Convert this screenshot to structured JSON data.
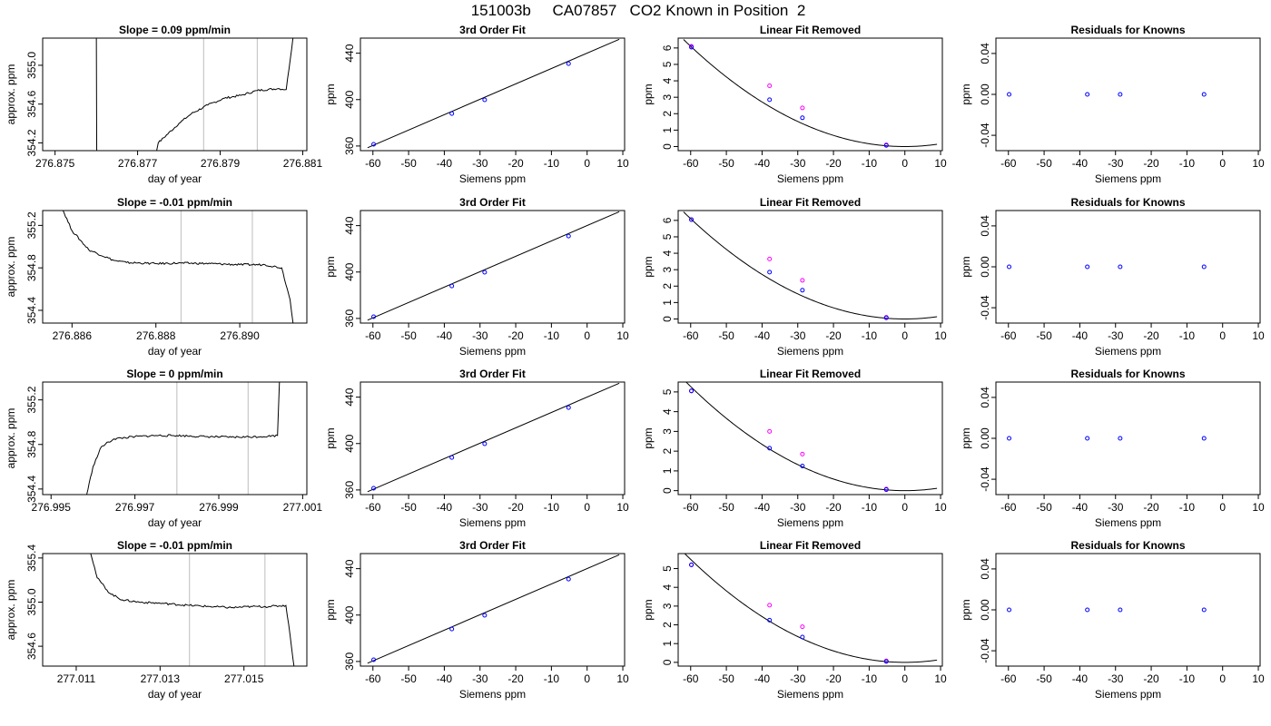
{
  "title": "151003b     CA07857   CO2 Known in Position  2",
  "colors": {
    "frame": "#000000",
    "grid_vline": "#c8c8c8",
    "known": "#0000ff",
    "raw": "#ff00ff",
    "curve": "#000000"
  },
  "chart_data": [
    {
      "row": 0,
      "type": "line",
      "title": "Slope =  0.09  ppm/min",
      "xlabel": "day of year",
      "ylabel": "approx. ppm",
      "xlim": [
        276.8747,
        276.8811
      ],
      "ylim": [
        354.12,
        355.28
      ],
      "xticks": [
        276.875,
        276.877,
        276.879,
        276.881
      ],
      "xtick_labels": [
        "276.875",
        "276.877",
        "276.879",
        "276.881"
      ],
      "yticks": [
        354.2,
        354.6,
        355.0
      ],
      "ytick_labels": [
        "354.2",
        "354.6",
        "355.0"
      ],
      "vlines": [
        276.8786,
        276.8799
      ],
      "x_start": 276.876,
      "x_end": 276.8808,
      "segments": [
        [
          276.876,
          355.4
        ],
        [
          276.87601,
          354.05
        ],
        [
          276.87742,
          354.05
        ],
        [
          276.8775,
          354.2
        ],
        [
          276.878,
          354.4
        ],
        [
          276.8783,
          354.5
        ],
        [
          276.8787,
          354.59
        ],
        [
          276.8791,
          354.66
        ],
        [
          276.8795,
          354.69
        ],
        [
          276.8799,
          354.74
        ],
        [
          276.8804,
          354.76
        ],
        [
          276.8806,
          354.75
        ],
        [
          276.8808,
          355.4
        ]
      ]
    },
    {
      "row": 1,
      "type": "line",
      "title": "Slope =  -0.01  ppm/min",
      "xlabel": "day of year",
      "ylabel": "approx. ppm",
      "xlim": [
        276.8853,
        276.8916
      ],
      "ylim": [
        354.28,
        355.34
      ],
      "xticks": [
        276.886,
        276.888,
        276.89
      ],
      "xtick_labels": [
        "276.886",
        "276.888",
        "276.890"
      ],
      "yticks": [
        354.4,
        354.8,
        355.2
      ],
      "ytick_labels": [
        "354.4",
        "354.8",
        "355.2"
      ],
      "vlines": [
        276.8886,
        276.8903
      ],
      "x_start": 276.8857,
      "x_end": 276.8913,
      "segments": [
        [
          276.88572,
          355.4
        ],
        [
          276.886,
          355.15
        ],
        [
          276.8864,
          354.97
        ],
        [
          276.887,
          354.87
        ],
        [
          276.8873,
          354.85
        ],
        [
          276.888,
          354.84
        ],
        [
          276.8886,
          354.845
        ],
        [
          276.8893,
          354.84
        ],
        [
          276.89,
          354.83
        ],
        [
          276.8906,
          354.83
        ],
        [
          276.891,
          354.8
        ],
        [
          276.8912,
          354.5
        ],
        [
          276.8913,
          354.2
        ]
      ]
    },
    {
      "row": 2,
      "type": "line",
      "title": "Slope =  0  ppm/min",
      "xlabel": "day of year",
      "ylabel": "approx. ppm",
      "xlim": [
        276.9948,
        277.0011
      ],
      "ylim": [
        354.35,
        355.36
      ],
      "xticks": [
        276.995,
        276.997,
        276.999,
        277.001
      ],
      "xtick_labels": [
        "276.995",
        "276.997",
        "276.999",
        "277.001"
      ],
      "yticks": [
        354.4,
        354.8,
        355.2
      ],
      "ytick_labels": [
        "354.4",
        "354.8",
        "355.2"
      ],
      "vlines": [
        276.998,
        276.9997
      ],
      "x_start": 276.9958,
      "x_end": 277.0005,
      "segments": [
        [
          276.99582,
          354.3
        ],
        [
          276.996,
          354.6
        ],
        [
          276.9962,
          354.78
        ],
        [
          276.9965,
          354.85
        ],
        [
          276.997,
          354.87
        ],
        [
          276.9975,
          354.88
        ],
        [
          276.998,
          354.88
        ],
        [
          276.9987,
          354.87
        ],
        [
          276.9993,
          354.865
        ],
        [
          277.0,
          354.87
        ],
        [
          277.0004,
          354.88
        ],
        [
          277.00045,
          355.4
        ]
      ]
    },
    {
      "row": 3,
      "type": "line",
      "title": "Slope =  -0.01  ppm/min",
      "xlabel": "day of year",
      "ylabel": "approx. ppm",
      "xlim": [
        277.0102,
        277.0165
      ],
      "ylim": [
        354.42,
        355.44
      ],
      "xticks": [
        277.011,
        277.013,
        277.015
      ],
      "xtick_labels": [
        "277.011",
        "277.013",
        "277.015"
      ],
      "yticks": [
        354.6,
        355.0,
        355.4
      ],
      "ytick_labels": [
        "354.6",
        "355.0",
        "355.4"
      ],
      "vlines": [
        277.0137,
        277.0155
      ],
      "x_start": 277.0113,
      "x_end": 277.0162,
      "segments": [
        [
          277.01131,
          355.5
        ],
        [
          277.0115,
          355.22
        ],
        [
          277.0118,
          355.08
        ],
        [
          277.0121,
          355.02
        ],
        [
          277.0125,
          355.0
        ],
        [
          277.013,
          354.99
        ],
        [
          277.0137,
          354.97
        ],
        [
          277.0142,
          354.96
        ],
        [
          277.0147,
          354.95
        ],
        [
          277.0152,
          354.96
        ],
        [
          277.0156,
          354.96
        ],
        [
          277.016,
          354.97
        ],
        [
          277.0161,
          354.7
        ],
        [
          277.0162,
          354.4
        ]
      ]
    },
    {
      "row": 0,
      "type": "scatter",
      "title": "3rd Order Fit",
      "xlabel": "Siemens ppm",
      "ylabel": "ppm",
      "xlim": [
        -63.5,
        10.5
      ],
      "ylim": [
        356,
        453
      ],
      "xticks": [
        -60,
        -50,
        -40,
        -30,
        -20,
        -10,
        0,
        10
      ],
      "xtick_labels": [
        "-60",
        "-50",
        "-40",
        "-30",
        "-20",
        "-10",
        "0",
        "10"
      ],
      "yticks": [
        360,
        400,
        440
      ],
      "ytick_labels": [
        "360",
        "400",
        "440"
      ],
      "x": [
        -59.8,
        -37.9,
        -28.7,
        -5.2
      ],
      "y": [
        361.5,
        388.0,
        399.8,
        431.0
      ],
      "line": [
        [
          -61.5,
          358.5
        ],
        [
          9,
          452
        ]
      ]
    },
    {
      "row": 1,
      "type": "scatter",
      "title": "3rd Order Fit",
      "xlabel": "Siemens ppm",
      "ylabel": "ppm",
      "xlim": [
        -63.5,
        10.5
      ],
      "ylim": [
        356,
        453
      ],
      "xticks": [
        -60,
        -50,
        -40,
        -30,
        -20,
        -10,
        0,
        10
      ],
      "xtick_labels": [
        "-60",
        "-50",
        "-40",
        "-30",
        "-20",
        "-10",
        "0",
        "10"
      ],
      "yticks": [
        360,
        400,
        440
      ],
      "ytick_labels": [
        "360",
        "400",
        "440"
      ],
      "x": [
        -59.8,
        -37.9,
        -28.7,
        -5.2
      ],
      "y": [
        361.5,
        388.0,
        399.8,
        431.0
      ],
      "line": [
        [
          -61.5,
          358.5
        ],
        [
          9,
          452
        ]
      ]
    },
    {
      "row": 2,
      "type": "scatter",
      "title": "3rd Order Fit",
      "xlabel": "Siemens ppm",
      "ylabel": "ppm",
      "xlim": [
        -63.5,
        10.5
      ],
      "ylim": [
        356,
        453
      ],
      "xticks": [
        -60,
        -50,
        -40,
        -30,
        -20,
        -10,
        0,
        10
      ],
      "xtick_labels": [
        "-60",
        "-50",
        "-40",
        "-30",
        "-20",
        "-10",
        "0",
        "10"
      ],
      "yticks": [
        360,
        400,
        440
      ],
      "ytick_labels": [
        "360",
        "400",
        "440"
      ],
      "x": [
        -59.8,
        -37.9,
        -28.7,
        -5.2
      ],
      "y": [
        361.5,
        388.0,
        399.8,
        431.0
      ],
      "line": [
        [
          -61.5,
          358.5
        ],
        [
          9,
          452
        ]
      ]
    },
    {
      "row": 3,
      "type": "scatter",
      "title": "3rd Order Fit",
      "xlabel": "Siemens ppm",
      "ylabel": "ppm",
      "xlim": [
        -63.5,
        10.5
      ],
      "ylim": [
        356,
        453
      ],
      "xticks": [
        -60,
        -50,
        -40,
        -30,
        -20,
        -10,
        0,
        10
      ],
      "xtick_labels": [
        "-60",
        "-50",
        "-40",
        "-30",
        "-20",
        "-10",
        "0",
        "10"
      ],
      "yticks": [
        360,
        400,
        440
      ],
      "ytick_labels": [
        "360",
        "400",
        "440"
      ],
      "x": [
        -59.8,
        -37.9,
        -28.7,
        -5.2
      ],
      "y": [
        361.5,
        388.0,
        399.8,
        431.0
      ],
      "line": [
        [
          -61.5,
          358.5
        ],
        [
          9,
          452
        ]
      ]
    },
    {
      "row": 0,
      "type": "scatter",
      "title": "Linear Fit Removed",
      "xlabel": "Siemens ppm",
      "ylabel": "ppm",
      "xlim": [
        -63.5,
        10.5
      ],
      "ylim": [
        -0.25,
        6.6
      ],
      "xticks": [
        -60,
        -50,
        -40,
        -30,
        -20,
        -10,
        0,
        10
      ],
      "xtick_labels": [
        "-60",
        "-50",
        "-40",
        "-30",
        "-20",
        "-10",
        "0",
        "10"
      ],
      "yticks": [
        0,
        1,
        2,
        3,
        4,
        5,
        6
      ],
      "ytick_labels": [
        "0",
        "1",
        "2",
        "3",
        "4",
        "5",
        "6"
      ],
      "series": [
        {
          "name": "",
          "color": "#0000ff",
          "x": [
            -59.8,
            -37.9,
            -28.7,
            -5.2
          ],
          "y": [
            6.05,
            2.85,
            1.75,
            0.07
          ]
        },
        {
          "name": "",
          "color": "#ff00ff",
          "x": [
            -59.8,
            -37.9,
            -28.7,
            -5.2
          ],
          "y": [
            6.1,
            3.7,
            2.35,
            0.1
          ]
        }
      ],
      "curve_quadratic": {
        "a": 0.001695,
        "vertex_x": 0.0,
        "x_from": -62.0,
        "x_to": 9.0
      }
    },
    {
      "row": 1,
      "type": "scatter",
      "title": "Linear Fit Removed",
      "xlabel": "Siemens ppm",
      "ylabel": "ppm",
      "xlim": [
        -63.5,
        10.5
      ],
      "ylim": [
        -0.25,
        6.6
      ],
      "xticks": [
        -60,
        -50,
        -40,
        -30,
        -20,
        -10,
        0,
        10
      ],
      "xtick_labels": [
        "-60",
        "-50",
        "-40",
        "-30",
        "-20",
        "-10",
        "0",
        "10"
      ],
      "yticks": [
        0,
        1,
        2,
        3,
        4,
        5,
        6
      ],
      "ytick_labels": [
        "0",
        "1",
        "2",
        "3",
        "4",
        "5",
        "6"
      ],
      "series": [
        {
          "name": "",
          "color": "#0000ff",
          "x": [
            -59.8,
            -37.9,
            -28.7,
            -5.2
          ],
          "y": [
            6.05,
            2.85,
            1.75,
            0.07
          ]
        },
        {
          "name": "",
          "color": "#ff00ff",
          "x": [
            -59.8,
            -37.9,
            -28.7,
            -5.2
          ],
          "y": [
            6.05,
            3.65,
            2.35,
            0.1
          ]
        }
      ],
      "curve_quadratic": {
        "a": 0.001695,
        "vertex_x": 0.0,
        "x_from": -62.0,
        "x_to": 9.0
      }
    },
    {
      "row": 2,
      "type": "scatter",
      "title": "Linear Fit Removed",
      "xlabel": "Siemens ppm",
      "ylabel": "ppm",
      "xlim": [
        -63.5,
        10.5
      ],
      "ylim": [
        -0.2,
        5.5
      ],
      "xticks": [
        -60,
        -50,
        -40,
        -30,
        -20,
        -10,
        0,
        10
      ],
      "xtick_labels": [
        "-60",
        "-50",
        "-40",
        "-30",
        "-20",
        "-10",
        "0",
        "10"
      ],
      "yticks": [
        0,
        1,
        2,
        3,
        4,
        5
      ],
      "ytick_labels": [
        "0",
        "1",
        "2",
        "3",
        "4",
        "5"
      ],
      "series": [
        {
          "name": "",
          "color": "#0000ff",
          "x": [
            -59.8,
            -37.9,
            -28.7,
            -5.2
          ],
          "y": [
            5.05,
            2.15,
            1.25,
            0.05
          ]
        },
        {
          "name": "",
          "color": "#ff00ff",
          "x": [
            -59.8,
            -37.9,
            -28.7,
            -5.2
          ],
          "y": [
            5.05,
            3.0,
            1.85,
            0.08
          ]
        }
      ],
      "curve_quadratic": {
        "a": 0.001465,
        "vertex_x": 0.0,
        "x_from": -62.0,
        "x_to": 9.0
      }
    },
    {
      "row": 3,
      "type": "scatter",
      "title": "Linear Fit Removed",
      "xlabel": "Siemens ppm",
      "ylabel": "ppm",
      "xlim": [
        -63.5,
        10.5
      ],
      "ylim": [
        -0.2,
        5.8
      ],
      "xticks": [
        -60,
        -50,
        -40,
        -30,
        -20,
        -10,
        0,
        10
      ],
      "xtick_labels": [
        "-60",
        "-50",
        "-40",
        "-30",
        "-20",
        "-10",
        "0",
        "10"
      ],
      "yticks": [
        0,
        1,
        2,
        3,
        4,
        5
      ],
      "ytick_labels": [
        "0",
        "1",
        "2",
        "3",
        "4",
        "5"
      ],
      "series": [
        {
          "name": "",
          "color": "#0000ff",
          "x": [
            -59.8,
            -37.9,
            -28.7,
            -5.2
          ],
          "y": [
            5.2,
            2.25,
            1.35,
            0.05
          ]
        },
        {
          "name": "",
          "color": "#ff00ff",
          "x": [
            -59.8,
            -37.9,
            -28.7,
            -5.2
          ],
          "y": [
            5.2,
            3.05,
            1.9,
            0.08
          ]
        }
      ],
      "curve_quadratic": {
        "a": 0.001525,
        "vertex_x": 0.0,
        "x_from": -62.0,
        "x_to": 9.0
      }
    },
    {
      "row": 0,
      "type": "scatter",
      "title": "Residuals for Knowns",
      "xlabel": "Siemens ppm",
      "ylabel": "ppm",
      "xlim": [
        -63.5,
        10.5
      ],
      "ylim": [
        -0.055,
        0.055
      ],
      "xticks": [
        -60,
        -50,
        -40,
        -30,
        -20,
        -10,
        0,
        10
      ],
      "xtick_labels": [
        "-60",
        "-50",
        "-40",
        "-30",
        "-20",
        "-10",
        "0",
        "10"
      ],
      "yticks": [
        -0.04,
        0.0,
        0.04
      ],
      "ytick_labels": [
        "-0.04",
        "0.00",
        "0.04"
      ],
      "x": [
        -59.8,
        -37.9,
        -28.7,
        -5.2
      ],
      "y": [
        0,
        0,
        0,
        0
      ]
    },
    {
      "row": 1,
      "type": "scatter",
      "title": "Residuals for Knowns",
      "xlabel": "Siemens ppm",
      "ylabel": "ppm",
      "xlim": [
        -63.5,
        10.5
      ],
      "ylim": [
        -0.055,
        0.055
      ],
      "xticks": [
        -60,
        -50,
        -40,
        -30,
        -20,
        -10,
        0,
        10
      ],
      "xtick_labels": [
        "-60",
        "-50",
        "-40",
        "-30",
        "-20",
        "-10",
        "0",
        "10"
      ],
      "yticks": [
        -0.04,
        0.0,
        0.04
      ],
      "ytick_labels": [
        "-0.04",
        "0.00",
        "0.04"
      ],
      "x": [
        -59.8,
        -37.9,
        -28.7,
        -5.2
      ],
      "y": [
        0,
        0,
        0,
        0
      ]
    },
    {
      "row": 2,
      "type": "scatter",
      "title": "Residuals for Knowns",
      "xlabel": "Siemens ppm",
      "ylabel": "ppm",
      "xlim": [
        -63.5,
        10.5
      ],
      "ylim": [
        -0.055,
        0.055
      ],
      "xticks": [
        -60,
        -50,
        -40,
        -30,
        -20,
        -10,
        0,
        10
      ],
      "xtick_labels": [
        "-60",
        "-50",
        "-40",
        "-30",
        "-20",
        "-10",
        "0",
        "10"
      ],
      "yticks": [
        -0.04,
        0.0,
        0.04
      ],
      "ytick_labels": [
        "-0.04",
        "0.00",
        "0.04"
      ],
      "x": [
        -59.8,
        -37.9,
        -28.7,
        -5.2
      ],
      "y": [
        0,
        0,
        0,
        0
      ]
    },
    {
      "row": 3,
      "type": "scatter",
      "title": "Residuals for Knowns",
      "xlabel": "Siemens ppm",
      "ylabel": "ppm",
      "xlim": [
        -63.5,
        10.5
      ],
      "ylim": [
        -0.055,
        0.055
      ],
      "xticks": [
        -60,
        -50,
        -40,
        -30,
        -20,
        -10,
        0,
        10
      ],
      "xtick_labels": [
        "-60",
        "-50",
        "-40",
        "-30",
        "-20",
        "-10",
        "0",
        "10"
      ],
      "yticks": [
        -0.04,
        0.0,
        0.04
      ],
      "ytick_labels": [
        "-0.04",
        "0.00",
        "0.04"
      ],
      "x": [
        -59.8,
        -37.9,
        -28.7,
        -5.2
      ],
      "y": [
        0,
        0,
        0,
        0
      ]
    }
  ]
}
